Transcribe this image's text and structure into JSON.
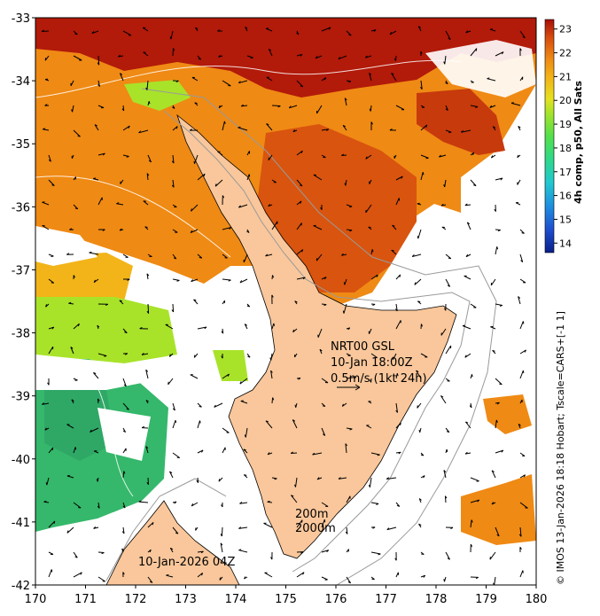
{
  "map": {
    "lon_range": [
      170,
      180
    ],
    "lat_range": [
      -42,
      -33
    ],
    "x_ticks": [
      "170",
      "171",
      "172",
      "173",
      "174",
      "175",
      "176",
      "177",
      "178",
      "179",
      "180"
    ],
    "y_ticks": [
      "-33",
      "-34",
      "-35",
      "-36",
      "-37",
      "-38",
      "-39",
      "-40",
      "-41",
      "-42"
    ],
    "land_color": "#f9c79b",
    "annotations": {
      "product_line1": "NRT00 GSL",
      "product_line2": "10-Jan 18:00Z",
      "product_line3": "0.5m/s (1kt 24h)",
      "contour_200": "200m",
      "contour_2000": "2000m",
      "sst_date": "10-Jan-2026 04Z"
    },
    "credit": "© IMOS 13-Jan-2026 18:18 Hobart; Tscale=CARS+[-1 1]"
  },
  "colorbar": {
    "title": "4h comp, p50, All Sats",
    "ticks": [
      "23",
      "22",
      "21",
      "20",
      "19",
      "18",
      "17",
      "16",
      "15",
      "14"
    ],
    "range": [
      13.6,
      23.4
    ],
    "colors": [
      "#0a1f8a",
      "#1f4fd0",
      "#1e8fe0",
      "#21c8d0",
      "#2ed98a",
      "#55e04a",
      "#a8e32a",
      "#e6e020",
      "#f2b418",
      "#ef8a14",
      "#d94e0e",
      "#a80e08"
    ]
  }
}
